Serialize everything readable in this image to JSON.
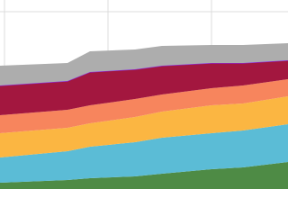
{
  "chart_data": {
    "type": "stacked-area",
    "x": [
      0,
      75,
      100,
      150,
      180,
      235,
      270,
      320
    ],
    "xlim": [
      0,
      320
    ],
    "xticks": [
      5,
      120,
      235
    ],
    "ylim": [
      0,
      210
    ],
    "yticks": [
      197
    ],
    "grid": true,
    "series": [
      {
        "name": "green",
        "color": "#4e8b45",
        "values": [
          7,
          10,
          12,
          14,
          17,
          22,
          24,
          30
        ]
      },
      {
        "name": "blue",
        "color": "#5bbcd6",
        "values": [
          28,
          32,
          35,
          38,
          40,
          40,
          41,
          42
        ]
      },
      {
        "name": "yellow",
        "color": "#fbb642",
        "values": [
          27,
          26,
          26,
          28,
          29,
          31,
          30,
          31
        ]
      },
      {
        "name": "salmon",
        "color": "#f7855d",
        "values": [
          20,
          20,
          20,
          20,
          19,
          19,
          20,
          19
        ]
      },
      {
        "name": "crimson",
        "color": "#a3173f",
        "edge_color": "#8a2be2",
        "values": [
          33,
          32,
          37,
          33,
          32,
          28,
          25,
          21
        ]
      },
      {
        "name": "gray",
        "color": "#adadad",
        "values": [
          22,
          20,
          23,
          22,
          22,
          20,
          20,
          19
        ]
      }
    ]
  }
}
